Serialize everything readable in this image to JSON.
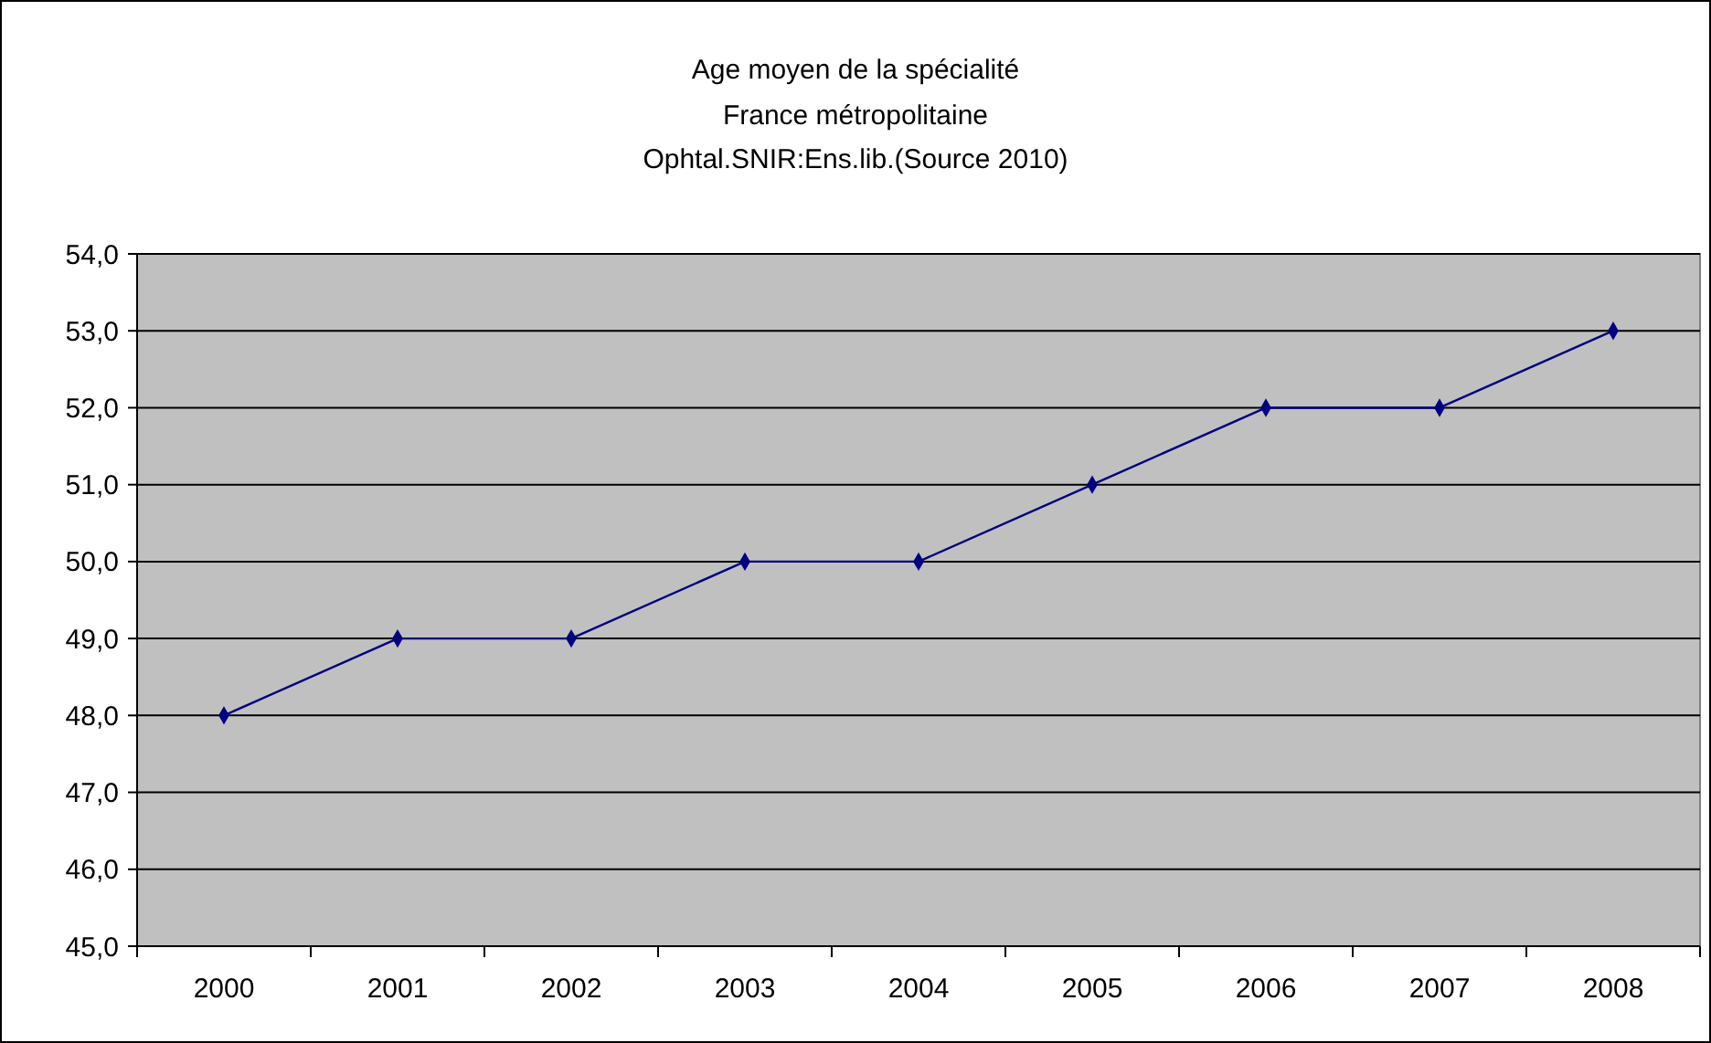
{
  "chart_data": {
    "type": "line",
    "title": "Age moyen de la spécialité",
    "subtitle": "France métropolitaine\nOphtal.SNIR:Ens.lib.(Source 2010)",
    "categories": [
      "2000",
      "2001",
      "2002",
      "2003",
      "2004",
      "2005",
      "2006",
      "2007",
      "2008"
    ],
    "series": [
      {
        "color": "#000080",
        "values": [
          48,
          49,
          49,
          50,
          50,
          51,
          52,
          52,
          53
        ]
      }
    ],
    "ylim": [
      45,
      54
    ],
    "yticks": [
      {
        "value": 45,
        "label": "45,0"
      },
      {
        "value": 46,
        "label": "46,0"
      },
      {
        "value": 47,
        "label": "47,0"
      },
      {
        "value": 48,
        "label": "48,0"
      },
      {
        "value": 49,
        "label": "49,0"
      },
      {
        "value": 50,
        "label": "50,0"
      },
      {
        "value": 51,
        "label": "51,0"
      },
      {
        "value": 52,
        "label": "52,0"
      },
      {
        "value": 53,
        "label": "53,0"
      },
      {
        "value": 54,
        "label": "54,0"
      }
    ],
    "grid": "y",
    "marker": "diamond",
    "line_style": "solid"
  }
}
